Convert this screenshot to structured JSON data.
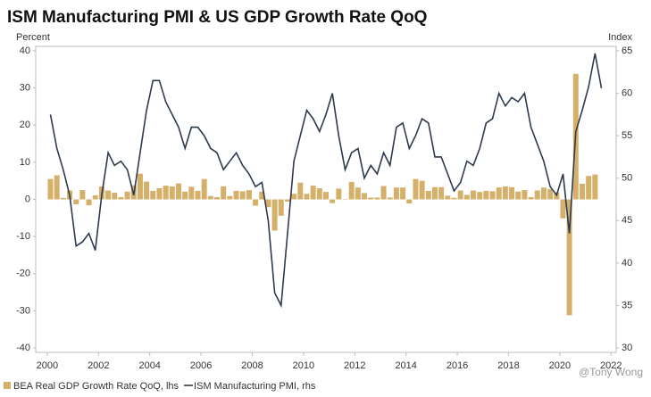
{
  "chart_data": {
    "type": "bar-line",
    "title": "ISM Manufacturing PMI & US GDP Growth Rate QoQ",
    "y_label": "Percent",
    "y2_label": "Index",
    "watermark": "@Tony Wong",
    "xlim": [
      1999.55,
      2022.2
    ],
    "xticks": [
      2000,
      2002,
      2004,
      2006,
      2008,
      2010,
      2012,
      2014,
      2016,
      2018,
      2020,
      2022
    ],
    "ylim": [
      -40,
      40
    ],
    "yticks": [
      -40,
      -30,
      -20,
      -10,
      0,
      10,
      20,
      30,
      40
    ],
    "y2lim": [
      30,
      65
    ],
    "y2ticks": [
      30,
      35,
      40,
      45,
      50,
      55,
      60,
      65
    ],
    "series": [
      {
        "name": "BEA Real GDP Growth Rate QoQ, lhs",
        "color": "#d4b06a",
        "kind": "bar",
        "x": [
          2000.125,
          2000.375,
          2000.625,
          2000.875,
          2001.125,
          2001.375,
          2001.625,
          2001.875,
          2002.125,
          2002.375,
          2002.625,
          2002.875,
          2003.125,
          2003.375,
          2003.625,
          2003.875,
          2004.125,
          2004.375,
          2004.625,
          2004.875,
          2005.125,
          2005.375,
          2005.625,
          2005.875,
          2006.125,
          2006.375,
          2006.625,
          2006.875,
          2007.125,
          2007.375,
          2007.625,
          2007.875,
          2008.125,
          2008.375,
          2008.625,
          2008.875,
          2009.125,
          2009.375,
          2009.625,
          2009.875,
          2010.125,
          2010.375,
          2010.625,
          2010.875,
          2011.125,
          2011.375,
          2011.625,
          2011.875,
          2012.125,
          2012.375,
          2012.625,
          2012.875,
          2013.125,
          2013.375,
          2013.625,
          2013.875,
          2014.125,
          2014.375,
          2014.625,
          2014.875,
          2015.125,
          2015.375,
          2015.625,
          2015.875,
          2016.125,
          2016.375,
          2016.625,
          2016.875,
          2017.125,
          2017.375,
          2017.625,
          2017.875,
          2018.125,
          2018.375,
          2018.625,
          2018.875,
          2019.125,
          2019.375,
          2019.625,
          2019.875,
          2020.125,
          2020.375,
          2020.625,
          2020.875,
          2021.125,
          2021.375
        ],
        "values": [
          5.5,
          6.5,
          0.4,
          2.4,
          -1.3,
          2.5,
          -1.6,
          1.1,
          3.5,
          2.4,
          1.8,
          0.6,
          2.1,
          3.8,
          6.9,
          4.8,
          2.3,
          3.0,
          3.7,
          3.5,
          4.3,
          2.1,
          3.4,
          2.3,
          5.5,
          0.9,
          0.6,
          3.5,
          0.9,
          2.3,
          2.2,
          2.5,
          -1.7,
          2.1,
          -2.1,
          -8.4,
          -4.4,
          -0.6,
          1.5,
          4.5,
          1.5,
          3.7,
          3.0,
          2.0,
          -1.0,
          2.9,
          -0.1,
          4.7,
          3.2,
          1.7,
          0.5,
          0.5,
          3.6,
          0.5,
          3.2,
          3.2,
          -1.1,
          5.5,
          5.0,
          2.3,
          3.3,
          3.3,
          1.0,
          0.4,
          2.4,
          1.2,
          2.4,
          2.0,
          2.3,
          2.2,
          3.2,
          3.5,
          3.3,
          2.1,
          2.5,
          0.6,
          2.4,
          3.2,
          2.8,
          1.9,
          -5.1,
          -31.2,
          33.8,
          4.2,
          6.3,
          6.7
        ]
      },
      {
        "name": "ISM Manufacturing PMI, rhs",
        "color": "#2e3a4f",
        "kind": "line",
        "axis": "y2",
        "x": [
          2000.125,
          2000.375,
          2000.625,
          2000.875,
          2001.125,
          2001.375,
          2001.625,
          2001.875,
          2002.125,
          2002.375,
          2002.625,
          2002.875,
          2003.125,
          2003.375,
          2003.625,
          2003.875,
          2004.125,
          2004.375,
          2004.625,
          2004.875,
          2005.125,
          2005.375,
          2005.625,
          2005.875,
          2006.125,
          2006.375,
          2006.625,
          2006.875,
          2007.125,
          2007.375,
          2007.625,
          2007.875,
          2008.125,
          2008.375,
          2008.625,
          2008.875,
          2009.125,
          2009.375,
          2009.625,
          2009.875,
          2010.125,
          2010.375,
          2010.625,
          2010.875,
          2011.125,
          2011.375,
          2011.625,
          2011.875,
          2012.125,
          2012.375,
          2012.625,
          2012.875,
          2013.125,
          2013.375,
          2013.625,
          2013.875,
          2014.125,
          2014.375,
          2014.625,
          2014.875,
          2015.125,
          2015.375,
          2015.625,
          2015.875,
          2016.125,
          2016.375,
          2016.625,
          2016.875,
          2017.125,
          2017.375,
          2017.625,
          2017.875,
          2018.125,
          2018.375,
          2018.625,
          2018.875,
          2019.125,
          2019.375,
          2019.625,
          2019.875,
          2020.125,
          2020.375,
          2020.625,
          2020.875,
          2021.125,
          2021.375,
          2021.625
        ],
        "values": [
          57.5,
          53.5,
          51,
          48,
          42,
          42.5,
          43.5,
          41.5,
          48,
          53,
          51.5,
          52,
          51,
          48,
          53,
          58,
          61.5,
          61.5,
          59,
          57.5,
          56,
          53.5,
          56,
          56,
          55,
          53.5,
          53,
          51,
          52,
          53,
          51.5,
          50.5,
          49,
          49.5,
          45,
          36.5,
          35,
          43.5,
          52,
          55,
          58,
          57,
          55.5,
          57.5,
          60,
          55,
          51,
          53,
          53.5,
          50,
          51.5,
          50.5,
          53,
          51.5,
          56,
          56.5,
          53.5,
          55,
          57,
          56.5,
          52.5,
          52.5,
          50.5,
          48.5,
          49.5,
          52,
          51.5,
          53.5,
          56.5,
          57,
          60,
          58.5,
          59.5,
          59,
          60,
          56,
          54,
          52,
          49,
          48,
          50.5,
          43.5,
          55.5,
          58,
          60.8,
          64.7,
          60.6
        ]
      }
    ]
  }
}
